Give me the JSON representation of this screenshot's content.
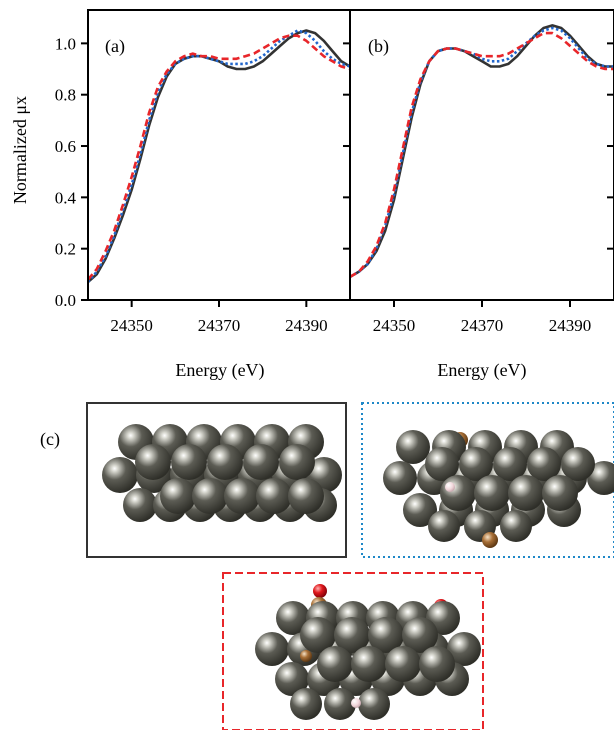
{
  "figure": {
    "panel_c_label": "(c)"
  },
  "chart_data": [
    {
      "type": "line",
      "panel_label": "(a)",
      "xlabel": "Energy (eV)",
      "ylabel": "Normalized μx",
      "xlim": [
        24340,
        24400
      ],
      "ylim": [
        0.0,
        1.13
      ],
      "xticks": [
        24350,
        24370,
        24390
      ],
      "yticks": [
        0.0,
        0.2,
        0.4,
        0.6,
        0.8,
        1.0
      ],
      "grid": false,
      "series": [
        {
          "color": "#333333",
          "style": "solid",
          "x": [
            24340,
            24342,
            24344,
            24346,
            24348,
            24350,
            24352,
            24354,
            24356,
            24358,
            24360,
            24362,
            24364,
            24366,
            24368,
            24370,
            24372,
            24374,
            24376,
            24378,
            24380,
            24382,
            24384,
            24386,
            24388,
            24390,
            24392,
            24394,
            24396,
            24398,
            24400
          ],
          "y": [
            0.07,
            0.1,
            0.16,
            0.24,
            0.33,
            0.43,
            0.55,
            0.68,
            0.79,
            0.87,
            0.92,
            0.94,
            0.95,
            0.95,
            0.94,
            0.93,
            0.91,
            0.9,
            0.9,
            0.91,
            0.93,
            0.96,
            0.99,
            1.02,
            1.04,
            1.05,
            1.04,
            1.01,
            0.97,
            0.93,
            0.91
          ]
        },
        {
          "color": "#2266cc",
          "style": "dotted",
          "x": [
            24340,
            24342,
            24344,
            24346,
            24348,
            24350,
            24352,
            24354,
            24356,
            24358,
            24360,
            24362,
            24364,
            24366,
            24368,
            24370,
            24372,
            24374,
            24376,
            24378,
            24380,
            24382,
            24384,
            24386,
            24388,
            24390,
            24392,
            24394,
            24396,
            24398,
            24400
          ],
          "y": [
            0.07,
            0.11,
            0.17,
            0.25,
            0.35,
            0.45,
            0.57,
            0.7,
            0.81,
            0.88,
            0.92,
            0.94,
            0.95,
            0.95,
            0.94,
            0.93,
            0.92,
            0.92,
            0.92,
            0.93,
            0.95,
            0.98,
            1.01,
            1.03,
            1.05,
            1.04,
            1.01,
            0.97,
            0.94,
            0.92,
            0.91
          ]
        },
        {
          "color": "#e8262a",
          "style": "dashed",
          "x": [
            24340,
            24342,
            24344,
            24346,
            24348,
            24350,
            24352,
            24354,
            24356,
            24358,
            24360,
            24362,
            24364,
            24366,
            24368,
            24370,
            24372,
            24374,
            24376,
            24378,
            24380,
            24382,
            24384,
            24386,
            24388,
            24390,
            24392,
            24394,
            24396,
            24398,
            24400
          ],
          "y": [
            0.08,
            0.12,
            0.19,
            0.27,
            0.37,
            0.48,
            0.6,
            0.73,
            0.83,
            0.89,
            0.93,
            0.95,
            0.96,
            0.95,
            0.95,
            0.94,
            0.94,
            0.94,
            0.95,
            0.96,
            0.98,
            1.0,
            1.02,
            1.03,
            1.03,
            1.01,
            0.98,
            0.95,
            0.93,
            0.91,
            0.9
          ]
        }
      ]
    },
    {
      "type": "line",
      "panel_label": "(b)",
      "xlabel": "Energy (eV)",
      "ylabel": "",
      "xlim": [
        24340,
        24400
      ],
      "ylim": [
        0.0,
        1.13
      ],
      "xticks": [
        24350,
        24370,
        24390
      ],
      "yticks": [
        0.0,
        0.2,
        0.4,
        0.6,
        0.8,
        1.0
      ],
      "grid": false,
      "series": [
        {
          "color": "#333333",
          "style": "solid",
          "x": [
            24340,
            24342,
            24344,
            24346,
            24348,
            24350,
            24352,
            24354,
            24356,
            24358,
            24360,
            24362,
            24364,
            24366,
            24368,
            24370,
            24372,
            24374,
            24376,
            24378,
            24380,
            24382,
            24384,
            24386,
            24388,
            24390,
            24392,
            24394,
            24396,
            24398,
            24400
          ],
          "y": [
            0.09,
            0.11,
            0.14,
            0.19,
            0.27,
            0.39,
            0.55,
            0.71,
            0.84,
            0.93,
            0.97,
            0.98,
            0.98,
            0.97,
            0.95,
            0.93,
            0.91,
            0.91,
            0.92,
            0.95,
            0.99,
            1.03,
            1.06,
            1.07,
            1.06,
            1.03,
            0.99,
            0.95,
            0.92,
            0.91,
            0.91
          ]
        },
        {
          "color": "#2266cc",
          "style": "dotted",
          "x": [
            24340,
            24342,
            24344,
            24346,
            24348,
            24350,
            24352,
            24354,
            24356,
            24358,
            24360,
            24362,
            24364,
            24366,
            24368,
            24370,
            24372,
            24374,
            24376,
            24378,
            24380,
            24382,
            24384,
            24386,
            24388,
            24390,
            24392,
            24394,
            24396,
            24398,
            24400
          ],
          "y": [
            0.09,
            0.11,
            0.14,
            0.2,
            0.29,
            0.41,
            0.57,
            0.73,
            0.85,
            0.93,
            0.97,
            0.98,
            0.98,
            0.97,
            0.96,
            0.94,
            0.93,
            0.93,
            0.94,
            0.97,
            1.0,
            1.03,
            1.05,
            1.06,
            1.05,
            1.02,
            0.98,
            0.94,
            0.92,
            0.91,
            0.91
          ]
        },
        {
          "color": "#e8262a",
          "style": "dashed",
          "x": [
            24340,
            24342,
            24344,
            24346,
            24348,
            24350,
            24352,
            24354,
            24356,
            24358,
            24360,
            24362,
            24364,
            24366,
            24368,
            24370,
            24372,
            24374,
            24376,
            24378,
            24380,
            24382,
            24384,
            24386,
            24388,
            24390,
            24392,
            24394,
            24396,
            24398,
            24400
          ],
          "y": [
            0.09,
            0.11,
            0.15,
            0.21,
            0.3,
            0.43,
            0.59,
            0.75,
            0.86,
            0.93,
            0.97,
            0.98,
            0.98,
            0.97,
            0.96,
            0.95,
            0.95,
            0.95,
            0.96,
            0.98,
            1.0,
            1.02,
            1.04,
            1.04,
            1.02,
            0.99,
            0.96,
            0.93,
            0.91,
            0.9,
            0.9
          ]
        }
      ]
    }
  ],
  "structures": {
    "panel_c_label": "(c)",
    "boxes": [
      {
        "border_color": "#333333",
        "border_style": "solid"
      },
      {
        "border_color": "#1e88c8",
        "border_style": "dotted"
      },
      {
        "border_color": "#e8262a",
        "border_style": "dashed"
      }
    ],
    "atom_colors": {
      "metal": "#4a4a42",
      "carbon": "#a0703a",
      "oxygen": "#e0181c",
      "hydrogen": "#f2d8dc"
    }
  }
}
